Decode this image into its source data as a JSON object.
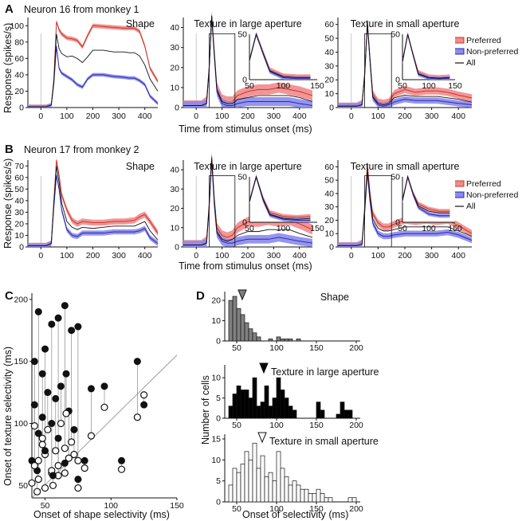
{
  "colors": {
    "preferred_fill": "#f28a8a",
    "preferred_line": "#c0392b",
    "nonpreferred_fill": "#8a8aee",
    "nonpreferred_line": "#2a2aa8",
    "all_line": "#111111",
    "shape_bars": "#808080",
    "texture_large_bars": "#000000",
    "texture_small_bars": "#ffffff"
  },
  "panel_letters": {
    "a": "A",
    "b": "B",
    "c": "C",
    "d": "D"
  },
  "panel_a": {
    "neuron_label": "Neuron 16 from monkey 1"
  },
  "panel_b": {
    "neuron_label": "Neuron 17 from monkey 2"
  },
  "xlabel_ab": "Time from stimulus onset (ms)",
  "ylabel_ab": "Response (spikes/s)",
  "legend": {
    "preferred": "Preferred",
    "nonpreferred": "Non-preferred",
    "all": "All"
  },
  "subplot_titles": {
    "shape": "Shape",
    "large": "Texture in large aperture",
    "small": "Texture in small aperture"
  },
  "panel_c": {
    "xlabel": "Onset of shape selectivity (ms)",
    "ylabel": "Onset of texture selectivity (ms)"
  },
  "panel_d": {
    "xlabel": "Onset of selectivity (ms)",
    "ylabel": "Number of cells"
  },
  "ticks": {
    "psth_x": [
      "0",
      "100",
      "200",
      "300",
      "400"
    ],
    "a_shape_y": [
      "0",
      "20",
      "40",
      "60",
      "80",
      "100"
    ],
    "a_large_y": [
      "0",
      "10",
      "20",
      "30",
      "40"
    ],
    "a_small_y": [
      "0",
      "10",
      "20",
      "30",
      "40",
      "50",
      "60"
    ],
    "b_y": [
      "0",
      "10",
      "20",
      "30",
      "40",
      "50",
      "60",
      "70"
    ],
    "b_large_y": [
      "0",
      "10",
      "20",
      "30",
      "40"
    ],
    "b_small_y": [
      "0",
      "10",
      "20",
      "30",
      "40",
      "50",
      "60"
    ],
    "inset_x": [
      "50",
      "100",
      "150"
    ],
    "inset_a_large_y": [
      "0",
      "50"
    ],
    "inset_a_small_y": [
      "0",
      "50"
    ],
    "inset_b_large_y": [
      "0",
      "50"
    ],
    "inset_b_small_y": [
      "0",
      "50"
    ],
    "c_x": [
      "50",
      "100",
      "150"
    ],
    "c_y": [
      "50",
      "100",
      "150",
      "200"
    ],
    "d_x": [
      "50",
      "100",
      "150",
      "200"
    ],
    "d_shape_y": [
      "0",
      "10",
      "20"
    ],
    "d_large_y": [
      "0",
      "5",
      "10"
    ],
    "d_small_y": [
      "0",
      "5",
      "10",
      "15"
    ]
  },
  "chart_data": [
    {
      "id": "A-shape",
      "type": "line",
      "title": "Shape",
      "xlim": [
        -50,
        450
      ],
      "ylim": [
        0,
        110
      ],
      "x": [
        -50,
        -20,
        0,
        20,
        40,
        50,
        60,
        70,
        80,
        100,
        120,
        140,
        160,
        180,
        200,
        240,
        280,
        320,
        340,
        360,
        380,
        400,
        420,
        450
      ],
      "series": [
        {
          "name": "Preferred",
          "values": [
            1,
            1,
            1,
            1,
            3,
            35,
            105,
            95,
            90,
            85,
            84,
            82,
            74,
            88,
            100,
            99,
            98,
            97,
            97,
            97,
            93,
            75,
            48,
            32
          ]
        },
        {
          "name": "Non-preferred",
          "values": [
            1,
            1,
            1,
            1,
            3,
            30,
            75,
            48,
            42,
            38,
            34,
            28,
            25,
            35,
            40,
            40,
            38,
            37,
            36,
            36,
            33,
            28,
            14,
            5
          ]
        },
        {
          "name": "All",
          "values": [
            1,
            1,
            1,
            1,
            3,
            32,
            90,
            72,
            66,
            62,
            63,
            60,
            55,
            62,
            70,
            70,
            68,
            68,
            67,
            67,
            63,
            52,
            35,
            20
          ]
        }
      ]
    },
    {
      "id": "A-large",
      "type": "line",
      "title": "Texture in large aperture",
      "xlim": [
        -50,
        450
      ],
      "ylim": [
        0,
        45
      ],
      "x": [
        -50,
        -20,
        0,
        20,
        40,
        50,
        60,
        70,
        80,
        100,
        120,
        140,
        160,
        200,
        240,
        280,
        320,
        360,
        400,
        450
      ],
      "series": [
        {
          "name": "Preferred",
          "values": [
            1,
            1,
            1,
            1,
            3,
            20,
            46,
            28,
            10,
            4,
            3,
            3,
            6,
            8,
            9,
            9,
            10,
            9,
            8,
            6
          ]
        },
        {
          "name": "Non-preferred",
          "values": [
            1,
            1,
            1,
            1,
            2,
            19,
            45,
            26,
            8,
            2,
            1,
            1,
            2,
            3,
            3,
            3,
            3,
            3,
            2,
            1
          ]
        },
        {
          "name": "All",
          "values": [
            1,
            1,
            1,
            1,
            2,
            19,
            46,
            27,
            9,
            3,
            2,
            2,
            4,
            5,
            6,
            6,
            6,
            6,
            5,
            3
          ]
        }
      ]
    },
    {
      "id": "A-small",
      "type": "line",
      "title": "Texture in small aperture",
      "xlim": [
        -50,
        450
      ],
      "ylim": [
        0,
        65
      ],
      "x": [
        -50,
        -20,
        0,
        20,
        40,
        50,
        60,
        70,
        80,
        100,
        120,
        140,
        160,
        200,
        240,
        280,
        320,
        360,
        400,
        450
      ],
      "series": [
        {
          "name": "Preferred",
          "values": [
            1,
            1,
            1,
            1,
            3,
            25,
            62,
            35,
            10,
            4,
            3,
            4,
            10,
            13,
            11,
            12,
            12,
            11,
            9,
            7
          ]
        },
        {
          "name": "Non-preferred",
          "values": [
            1,
            1,
            1,
            1,
            2,
            23,
            60,
            33,
            7,
            2,
            1,
            2,
            4,
            6,
            5,
            5,
            5,
            4,
            3,
            2
          ]
        },
        {
          "name": "All",
          "values": [
            1,
            1,
            1,
            1,
            2,
            24,
            61,
            34,
            8,
            3,
            2,
            3,
            7,
            9,
            8,
            8,
            8,
            7,
            6,
            4
          ]
        }
      ]
    },
    {
      "id": "B-shape",
      "type": "line",
      "title": "Shape",
      "xlim": [
        -50,
        450
      ],
      "ylim": [
        0,
        75
      ],
      "x": [
        -50,
        -20,
        0,
        20,
        40,
        50,
        60,
        70,
        80,
        100,
        120,
        140,
        160,
        200,
        240,
        280,
        320,
        360,
        380,
        400,
        420,
        450
      ],
      "series": [
        {
          "name": "Preferred",
          "values": [
            1,
            1,
            1,
            1,
            3,
            40,
            75,
            62,
            45,
            32,
            23,
            20,
            22,
            21,
            21,
            22,
            22,
            23,
            26,
            28,
            22,
            12
          ]
        },
        {
          "name": "Non-preferred",
          "values": [
            1,
            1,
            1,
            1,
            3,
            35,
            62,
            50,
            32,
            15,
            10,
            9,
            12,
            12,
            12,
            13,
            13,
            13,
            14,
            16,
            8,
            3
          ]
        },
        {
          "name": "All",
          "values": [
            1,
            1,
            1,
            1,
            3,
            38,
            70,
            56,
            38,
            22,
            17,
            15,
            17,
            16,
            17,
            18,
            18,
            18,
            20,
            22,
            14,
            6
          ]
        }
      ]
    },
    {
      "id": "B-large",
      "type": "line",
      "title": "Texture in large aperture",
      "xlim": [
        -50,
        450
      ],
      "ylim": [
        0,
        45
      ],
      "x": [
        -50,
        -20,
        0,
        20,
        40,
        50,
        60,
        70,
        80,
        100,
        120,
        140,
        160,
        200,
        240,
        280,
        320,
        360,
        400,
        450
      ],
      "series": [
        {
          "name": "Preferred",
          "values": [
            1,
            1,
            1,
            1,
            3,
            22,
            47,
            25,
            10,
            6,
            5,
            6,
            10,
            13,
            13,
            14,
            13,
            14,
            12,
            9
          ]
        },
        {
          "name": "Non-preferred",
          "values": [
            1,
            1,
            1,
            1,
            2,
            20,
            45,
            22,
            7,
            3,
            2,
            2,
            3,
            4,
            4,
            4,
            5,
            4,
            3,
            2
          ]
        },
        {
          "name": "All",
          "values": [
            1,
            1,
            1,
            1,
            2,
            21,
            46,
            24,
            8,
            4,
            3,
            4,
            6,
            8,
            8,
            9,
            9,
            9,
            7,
            5
          ]
        }
      ]
    },
    {
      "id": "B-small",
      "type": "line",
      "title": "Texture in small aperture",
      "xlim": [
        -50,
        450
      ],
      "ylim": [
        0,
        65
      ],
      "x": [
        -50,
        -20,
        0,
        20,
        40,
        50,
        60,
        70,
        80,
        100,
        120,
        140,
        160,
        200,
        240,
        280,
        320,
        360,
        400,
        450
      ],
      "series": [
        {
          "name": "Preferred",
          "values": [
            1,
            1,
            1,
            1,
            3,
            30,
            62,
            40,
            25,
            18,
            15,
            15,
            17,
            20,
            19,
            20,
            19,
            20,
            16,
            10
          ]
        },
        {
          "name": "Non-preferred",
          "values": [
            1,
            1,
            1,
            1,
            2,
            26,
            55,
            34,
            18,
            10,
            8,
            8,
            9,
            10,
            10,
            10,
            10,
            11,
            9,
            5
          ]
        },
        {
          "name": "All",
          "values": [
            1,
            1,
            1,
            1,
            2,
            28,
            58,
            37,
            21,
            14,
            12,
            12,
            13,
            15,
            15,
            15,
            15,
            15,
            12,
            8
          ]
        }
      ]
    },
    {
      "id": "C",
      "type": "scatter",
      "xlabel": "Onset of shape selectivity (ms)",
      "ylabel": "Onset of texture selectivity (ms)",
      "xlim": [
        40,
        150
      ],
      "ylim": [
        40,
        205
      ],
      "diagonal": true,
      "pairs": [
        {
          "shape": 45,
          "large": 190,
          "small": 70
        },
        {
          "shape": 50,
          "large": 160,
          "small": 75
        },
        {
          "shape": 55,
          "large": 180,
          "small": 60
        },
        {
          "shape": 60,
          "large": 185,
          "small": 66
        },
        {
          "shape": 65,
          "large": 195,
          "small": 80
        },
        {
          "shape": 70,
          "large": 175,
          "small": 85
        },
        {
          "shape": 75,
          "large": 178,
          "small": 70
        },
        {
          "shape": 85,
          "large": 128,
          "small": 90
        },
        {
          "shape": 95,
          "large": 130,
          "small": 113
        },
        {
          "shape": 120,
          "large": 150,
          "small": 105
        },
        {
          "shape": 125,
          "large": 115,
          "small": 123
        },
        {
          "shape": 108,
          "large": 70,
          "small": 63
        },
        {
          "shape": 42,
          "large": 150,
          "small": 98
        },
        {
          "shape": 48,
          "large": 140,
          "small": 83
        },
        {
          "shape": 52,
          "large": 125,
          "small": 95
        },
        {
          "shape": 58,
          "large": 120,
          "small": 78
        },
        {
          "shape": 62,
          "large": 130,
          "small": 100
        },
        {
          "shape": 68,
          "large": 110,
          "small": 72
        },
        {
          "shape": 55,
          "large": 100,
          "small": 62
        },
        {
          "shape": 45,
          "large": 92,
          "small": 55
        },
        {
          "shape": 60,
          "large": 88,
          "small": 58
        },
        {
          "shape": 72,
          "large": 95,
          "small": 75
        },
        {
          "shape": 50,
          "large": 78,
          "small": 48
        },
        {
          "shape": 40,
          "large": 70,
          "small": 52
        },
        {
          "shape": 65,
          "large": 68,
          "small": 60
        },
        {
          "shape": 80,
          "large": 70,
          "small": 64
        },
        {
          "shape": 44,
          "large": 62,
          "small": 45
        },
        {
          "shape": 56,
          "large": 58,
          "small": 50
        },
        {
          "shape": 75,
          "large": 55,
          "small": 48
        },
        {
          "shape": 48,
          "large": 105,
          "small": 88
        },
        {
          "shape": 42,
          "large": 115,
          "small": 66
        },
        {
          "shape": 66,
          "large": 140,
          "small": 108
        }
      ]
    },
    {
      "id": "D-shape",
      "type": "bar",
      "title": "Shape",
      "xlim": [
        35,
        205
      ],
      "ylim": [
        0,
        22
      ],
      "bins": [
        40,
        45,
        50,
        55,
        60,
        65,
        70,
        75,
        80,
        85,
        90,
        95,
        100,
        105,
        110,
        115,
        120,
        125
      ],
      "values": [
        20,
        22,
        16,
        13,
        9,
        6,
        4,
        2,
        0,
        0,
        1,
        0,
        2,
        1,
        1,
        1,
        0,
        1
      ],
      "median": 57
    },
    {
      "id": "D-large",
      "type": "bar",
      "title": "Texture in large aperture",
      "xlim": [
        35,
        205
      ],
      "ylim": [
        0,
        12
      ],
      "bins": [
        40,
        45,
        50,
        55,
        60,
        65,
        70,
        75,
        80,
        85,
        90,
        95,
        100,
        105,
        110,
        115,
        120,
        125,
        130,
        135,
        140,
        145,
        150,
        155,
        160,
        165,
        170,
        175,
        180,
        185,
        190
      ],
      "values": [
        3,
        6,
        8,
        7,
        7,
        5,
        10,
        3,
        4,
        8,
        3,
        5,
        10,
        7,
        5,
        3,
        2,
        0,
        0,
        0,
        0,
        0,
        4,
        2,
        0,
        0,
        0,
        1,
        4,
        2,
        2
      ],
      "median": 84
    },
    {
      "id": "D-small",
      "type": "bar",
      "title": "Texture in small aperture",
      "xlim": [
        35,
        205
      ],
      "ylim": [
        0,
        15
      ],
      "bins": [
        40,
        45,
        50,
        55,
        60,
        65,
        70,
        75,
        80,
        85,
        90,
        95,
        100,
        105,
        110,
        115,
        120,
        125,
        130,
        135,
        140,
        145,
        150,
        155,
        160,
        165,
        170,
        175,
        180,
        185,
        190,
        195
      ],
      "values": [
        4,
        8,
        7,
        9,
        12,
        10,
        14,
        8,
        11,
        6,
        7,
        5,
        12,
        8,
        6,
        4,
        5,
        4,
        3,
        3,
        2,
        2,
        3,
        2,
        1,
        1,
        0,
        0,
        0,
        0,
        1,
        1
      ],
      "median": 82
    }
  ]
}
